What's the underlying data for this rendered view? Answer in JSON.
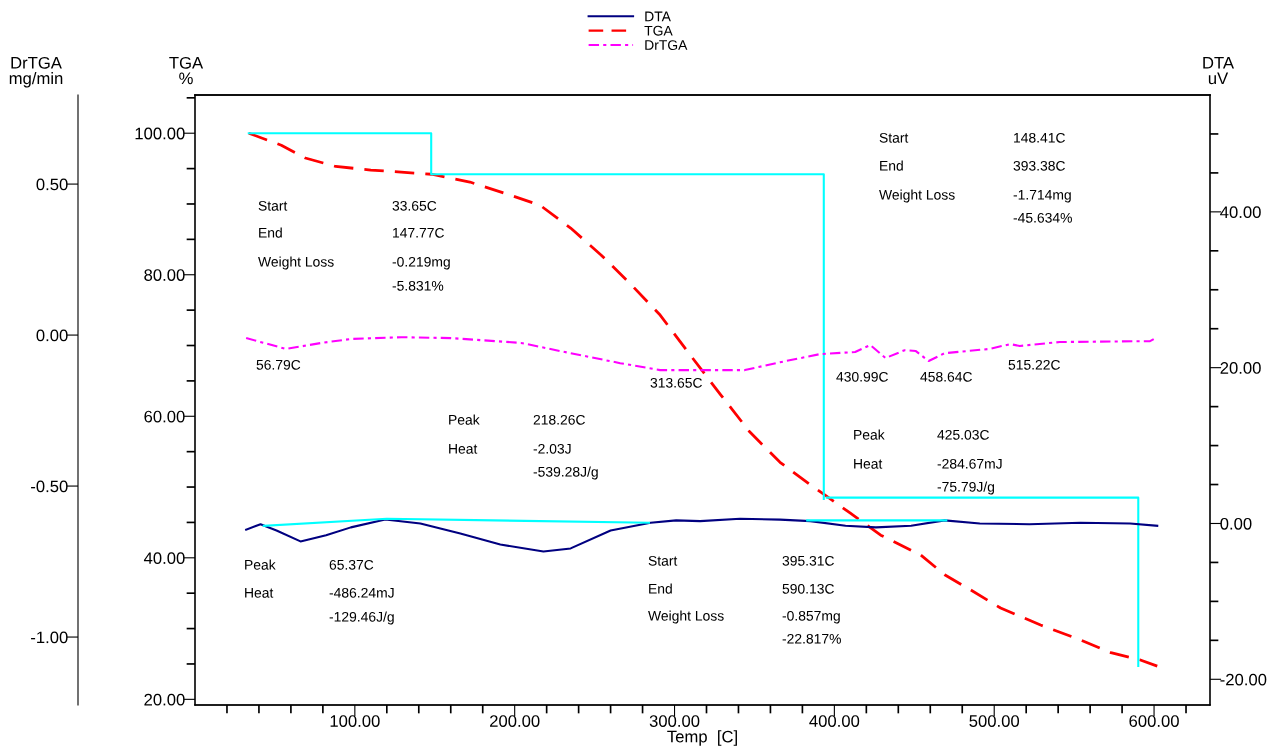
{
  "chart_data": {
    "type": "line",
    "xlabel": "Temp  [C]",
    "ylabel": "TGA\n%",
    "y2label": "DTA\nuV",
    "y3label": "DrTGA\nmg/min",
    "xlim": [
      0,
      635
    ],
    "xticks": [
      {
        "value": 20,
        "label": null
      },
      {
        "value": 40,
        "label": null
      },
      {
        "value": 60,
        "label": null
      },
      {
        "value": 80,
        "label": null
      },
      {
        "value": 100,
        "label": "100.00"
      },
      {
        "value": 120,
        "label": null
      },
      {
        "value": 140,
        "label": null
      },
      {
        "value": 160,
        "label": null
      },
      {
        "value": 180,
        "label": null
      },
      {
        "value": 200,
        "label": "200.00"
      },
      {
        "value": 220,
        "label": null
      },
      {
        "value": 240,
        "label": null
      },
      {
        "value": 260,
        "label": null
      },
      {
        "value": 280,
        "label": null
      },
      {
        "value": 300,
        "label": "300.00"
      },
      {
        "value": 320,
        "label": null
      },
      {
        "value": 340,
        "label": null
      },
      {
        "value": 360,
        "label": null
      },
      {
        "value": 380,
        "label": null
      },
      {
        "value": 400,
        "label": "400.00"
      },
      {
        "value": 420,
        "label": null
      },
      {
        "value": 440,
        "label": null
      },
      {
        "value": 460,
        "label": null
      },
      {
        "value": 480,
        "label": null
      },
      {
        "value": 500,
        "label": "500.00"
      },
      {
        "value": 520,
        "label": null
      },
      {
        "value": 540,
        "label": null
      },
      {
        "value": 560,
        "label": null
      },
      {
        "value": 580,
        "label": null
      },
      {
        "value": 600,
        "label": "600.00"
      },
      {
        "value": 620,
        "label": null
      }
    ],
    "ylim": [
      19.2,
      105.4
    ],
    "yticks": [
      {
        "value": 20,
        "label": "20.00"
      },
      {
        "value": 25,
        "label": null
      },
      {
        "value": 30,
        "label": null
      },
      {
        "value": 35,
        "label": null
      },
      {
        "value": 40,
        "label": "40.00"
      },
      {
        "value": 45,
        "label": null
      },
      {
        "value": 50,
        "label": null
      },
      {
        "value": 55,
        "label": null
      },
      {
        "value": 60,
        "label": "60.00"
      },
      {
        "value": 65,
        "label": null
      },
      {
        "value": 70,
        "label": null
      },
      {
        "value": 75,
        "label": null
      },
      {
        "value": 80,
        "label": "80.00"
      },
      {
        "value": 85,
        "label": null
      },
      {
        "value": 90,
        "label": null
      },
      {
        "value": 95,
        "label": null
      },
      {
        "value": 100,
        "label": "100.00"
      },
      {
        "value": 105,
        "label": null
      }
    ],
    "y2lim": [
      -23.3,
      55.0
    ],
    "y2ticks": [
      {
        "value": -20,
        "label": "-20.00"
      },
      {
        "value": -15,
        "label": null
      },
      {
        "value": -10,
        "label": null
      },
      {
        "value": -5,
        "label": null
      },
      {
        "value": 0,
        "label": "0.00"
      },
      {
        "value": 5,
        "label": null
      },
      {
        "value": 10,
        "label": null
      },
      {
        "value": 15,
        "label": null
      },
      {
        "value": 20,
        "label": "20.00"
      },
      {
        "value": 25,
        "label": null
      },
      {
        "value": 30,
        "label": null
      },
      {
        "value": 35,
        "label": null
      },
      {
        "value": 40,
        "label": "40.00"
      },
      {
        "value": 45,
        "label": null
      },
      {
        "value": 50,
        "label": null
      }
    ],
    "y3lim": [
      -1.225,
      0.795
    ],
    "y3ticks": [
      {
        "value": -1.0,
        "label": "-1.00"
      },
      {
        "value": -0.5,
        "label": "-0.50"
      },
      {
        "value": 0,
        "label": "0.00"
      },
      {
        "value": 0.5,
        "label": "0.50"
      }
    ],
    "legend": "top",
    "grid": false,
    "marker": "none",
    "series": [
      {
        "name": "DTA",
        "color": "#000080",
        "axis": "y2",
        "line_style": "solid",
        "x": [
          32,
          41,
          51,
          66,
          82,
          97.5,
          119,
          141,
          166,
          191,
          218,
          235,
          260,
          285,
          301,
          316,
          341,
          366,
          385,
          407,
          426,
          448,
          469,
          491,
          522,
          554,
          585,
          602
        ],
        "values": [
          -0.8,
          -0.1,
          -0.9,
          -2.3,
          -1.5,
          -0.5,
          0.5,
          0,
          -1.3,
          -2.7,
          -3.6,
          -3.2,
          -0.9,
          0.1,
          0.4,
          0.3,
          0.6,
          0.5,
          0.3,
          -0.3,
          -0.5,
          -0.3,
          0.4,
          0,
          -0.1,
          0.1,
          0,
          -0.3
        ]
      },
      {
        "name": "TGA",
        "color": "#ff0000",
        "line_style": "dashed",
        "x": [
          33.65,
          54,
          69,
          88,
          110,
          129,
          148,
          172,
          198,
          216,
          235,
          254,
          272,
          291,
          310,
          329,
          347,
          366,
          385,
          394,
          410,
          429,
          454,
          469,
          485,
          504,
          529,
          554,
          573,
          591,
          602
        ],
        "values": [
          100.0,
          98.3,
          96.5,
          95.3,
          94.8,
          94.5,
          94.2,
          93.1,
          91.2,
          89.8,
          86.6,
          82.8,
          78.8,
          74.3,
          68.6,
          63.0,
          57.8,
          53.5,
          50.3,
          48.9,
          46.3,
          43.2,
          40.4,
          37.6,
          35.5,
          32.9,
          30.5,
          28.4,
          26.6,
          25.6,
          24.7
        ]
      },
      {
        "name": "DrTGA",
        "color": "#ff00ff",
        "axis": "y3",
        "line_style": "dashdot",
        "x": [
          32,
          57,
          79,
          97.5,
          129,
          160,
          204,
          235,
          266,
          291,
          316,
          344,
          366,
          391,
          413,
          422.5,
          432,
          444,
          451,
          459,
          469,
          497,
          510,
          516,
          541,
          597.5,
          602
        ],
        "values": [
          -0.01,
          -0.046,
          -0.026,
          -0.013,
          -0.007,
          -0.01,
          -0.026,
          -0.06,
          -0.093,
          -0.116,
          -0.116,
          -0.116,
          -0.09,
          -0.063,
          -0.056,
          -0.033,
          -0.076,
          -0.05,
          -0.053,
          -0.086,
          -0.06,
          -0.046,
          -0.03,
          -0.036,
          -0.023,
          -0.02,
          -0.007
        ]
      },
      {
        "color": "#00ffff",
        "line_style": "solid",
        "x": [
          33.65,
          147.77,
          147.77,
          393.38,
          393.38
        ],
        "values": [
          100.0,
          100.0,
          94.2,
          94.2,
          48.3
        ]
      },
      {
        "color": "#00ffff",
        "line_style": "solid",
        "x": [
          395.31,
          590.13,
          590.13
        ],
        "values": [
          48.5,
          48.5,
          24.7
        ]
      },
      {
        "color": "#00ffff",
        "axis": "y2",
        "line_style": "solid",
        "x": [
          43,
          120,
          284
        ],
        "values": [
          -0.3,
          0.6,
          0.1
        ]
      },
      {
        "color": "#00ffff",
        "axis": "y2",
        "line_style": "solid",
        "x": [
          383,
          470
        ],
        "values": [
          0.4,
          0.4
        ]
      }
    ],
    "annotations": [
      "Start",
      "33.65C",
      "End",
      "147.77C",
      "Weight Loss",
      "-0.219mg",
      "-5.831%",
      "Start",
      "148.41C",
      "End",
      "393.38C",
      "Weight Loss",
      "-1.714mg",
      "-45.634%",
      "56.79C",
      "313.65C",
      "430.99C",
      "458.64C",
      "515.22C",
      "Peak",
      "218.26C",
      "Heat",
      "-2.03J",
      "-539.28J/g",
      "Peak",
      "425.03C",
      "Heat",
      "-284.67mJ",
      "-75.79J/g",
      "Peak",
      "65.37C",
      "Heat",
      "-486.24mJ",
      "-129.46J/g",
      "Start",
      "395.31C",
      "End",
      "590.13C",
      "Weight Loss",
      "-0.857mg",
      "-22.817%"
    ]
  }
}
